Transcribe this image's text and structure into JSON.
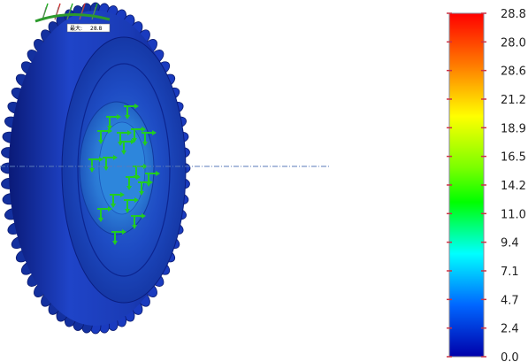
{
  "annotation": {
    "max_label": "最大:",
    "max_value": "28.8"
  },
  "legend": {
    "ticks": [
      "28.8",
      "28.0",
      "28.6",
      "21.2",
      "18.9",
      "16.5",
      "14.2",
      "11.0",
      "9.4",
      "7.1",
      "4.7",
      "2.4",
      "0.0"
    ],
    "colors": {
      "max": "#ff0000",
      "high": "#ff8800",
      "upper": "#ffff00",
      "mid": "#00ff00",
      "lower": "#00ffff",
      "low": "#0044ff",
      "min": "#0000aa",
      "tick_mark": "#cc3344"
    }
  },
  "colors": {
    "gear_dark": "#0a1e88",
    "gear_mid": "#1a3bbf",
    "gear_light": "#2a5be0",
    "hub": "#2a7fd8",
    "arrows": "#22cc22",
    "axis_line": "#5a7ab8"
  }
}
